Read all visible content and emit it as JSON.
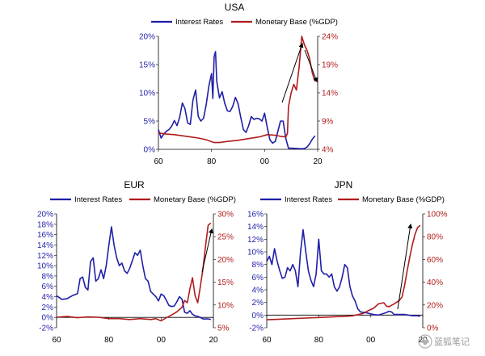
{
  "watermark": "蓝狐笔记",
  "chart_data": [
    {
      "type": "line",
      "title": "USA",
      "legend": [
        "Interest Rates",
        "Monetary Base (%GDP)"
      ],
      "legend_placement": "top",
      "x_ticks": [
        "60",
        "80",
        "00",
        "20"
      ],
      "x_range": [
        1960,
        2020
      ],
      "y_left": {
        "range": [
          0,
          20
        ],
        "ticks": [
          "0%",
          "5%",
          "10%",
          "15%",
          "20%"
        ],
        "color": "#1f1fa8"
      },
      "y_right": {
        "range": [
          4,
          24
        ],
        "ticks": [
          "4%",
          "9%",
          "14%",
          "19%",
          "24%"
        ],
        "color": "#b01c1c"
      },
      "series": [
        {
          "name": "Interest Rates",
          "axis": "left",
          "color": "#1f1fa8",
          "x": [
            1960,
            1961,
            1962,
            1963,
            1964,
            1965,
            1966,
            1967,
            1968,
            1969,
            1970,
            1971,
            1972,
            1973,
            1974,
            1975,
            1976,
            1977,
            1978,
            1979,
            1980,
            1980.5,
            1981,
            1981.5,
            1982,
            1983,
            1984,
            1985,
            1986,
            1987,
            1988,
            1989,
            1990,
            1991,
            1992,
            1993,
            1994,
            1995,
            1996,
            1997,
            1998,
            1999,
            2000,
            2001,
            2002,
            2003,
            2004,
            2005,
            2006,
            2007,
            2008,
            2009,
            2010,
            2012,
            2014,
            2015,
            2016,
            2017,
            2018,
            2019
          ],
          "y": [
            3.5,
            2.0,
            2.7,
            3.2,
            3.5,
            4.1,
            5.1,
            4.2,
            5.7,
            8.2,
            7.2,
            4.7,
            4.4,
            8.7,
            10.5,
            5.8,
            5.0,
            5.5,
            7.9,
            11.2,
            13.4,
            9.0,
            16.4,
            17.3,
            12.0,
            9.1,
            10.2,
            8.1,
            6.8,
            6.7,
            7.6,
            9.2,
            8.1,
            5.7,
            3.5,
            3.0,
            4.2,
            5.8,
            5.3,
            5.5,
            5.4,
            5.0,
            6.4,
            3.9,
            1.7,
            1.1,
            1.4,
            3.2,
            5.0,
            5.0,
            1.9,
            0.2,
            0.2,
            0.15,
            0.1,
            0.15,
            0.4,
            1.0,
            1.8,
            2.4
          ]
        },
        {
          "name": "Monetary Base (%GDP)",
          "axis": "right",
          "color": "#b01c1c",
          "x": [
            1960,
            1963,
            1966,
            1969,
            1972,
            1975,
            1978,
            1981,
            1983,
            1986,
            1990,
            1994,
            1998,
            2001,
            2004,
            2006,
            2008,
            2008.6,
            2009,
            2010,
            2011,
            2012,
            2013,
            2014,
            2015,
            2016,
            2017,
            2018,
            2019
          ],
          "y": [
            6.9,
            6.7,
            6.6,
            6.4,
            6.2,
            6.0,
            5.7,
            5.2,
            5.2,
            5.4,
            5.6,
            5.9,
            6.2,
            6.6,
            6.5,
            6.3,
            6.2,
            6.8,
            11.6,
            14.0,
            15.5,
            14.5,
            18.5,
            24.0,
            22.5,
            21.5,
            20.0,
            17.5,
            16.0
          ]
        }
      ]
    },
    {
      "type": "line",
      "title": "EUR",
      "legend": [
        "Interest Rates",
        "Monetary Base (%GDP)"
      ],
      "legend_placement": "top",
      "x_ticks": [
        "60",
        "80",
        "00",
        "20"
      ],
      "x_range": [
        1960,
        2020
      ],
      "y_left": {
        "range": [
          -2,
          20
        ],
        "ticks": [
          "-2%",
          "0%",
          "2%",
          "4%",
          "6%",
          "8%",
          "10%",
          "12%",
          "14%",
          "16%",
          "18%",
          "20%"
        ],
        "color": "#1f1fa8"
      },
      "y_right": {
        "range": [
          5,
          30
        ],
        "ticks": [
          "5%",
          "10%",
          "15%",
          "20%",
          "25%",
          "30%"
        ],
        "color": "#b01c1c"
      },
      "series": [
        {
          "name": "Interest Rates",
          "axis": "left",
          "color": "#1f1fa8",
          "x": [
            1960,
            1962,
            1964,
            1966,
            1968,
            1969,
            1970,
            1971,
            1972,
            1973,
            1974,
            1975,
            1976,
            1977,
            1978,
            1979,
            1980,
            1981,
            1982,
            1983,
            1984,
            1985,
            1986,
            1987,
            1988,
            1989,
            1990,
            1991,
            1992,
            1993,
            1994,
            1995,
            1996,
            1997,
            1998,
            1999,
            2000,
            2001,
            2002,
            2003,
            2004,
            2005,
            2006,
            2007,
            2008,
            2009,
            2010,
            2011,
            2012,
            2013,
            2014,
            2015,
            2016,
            2017,
            2018,
            2019
          ],
          "y": [
            4.2,
            3.5,
            3.6,
            4.2,
            4.6,
            7.5,
            7.8,
            5.8,
            5.3,
            10.8,
            11.5,
            7.0,
            7.5,
            9.2,
            7.5,
            10.0,
            14.0,
            17.5,
            14.0,
            11.5,
            10.0,
            10.5,
            9.0,
            8.5,
            9.5,
            11.0,
            12.5,
            12.0,
            13.0,
            10.0,
            7.5,
            7.0,
            5.0,
            4.5,
            4.0,
            3.2,
            4.5,
            4.2,
            3.3,
            2.3,
            2.1,
            2.2,
            3.0,
            4.0,
            3.5,
            1.0,
            0.8,
            1.3,
            0.6,
            0.3,
            0.2,
            0.0,
            -0.3,
            -0.3,
            -0.3,
            -0.4
          ]
        },
        {
          "name": "Monetary Base (%GDP)",
          "axis": "right",
          "color": "#b01c1c",
          "x": [
            1960,
            1964,
            1968,
            1972,
            1976,
            1980,
            1984,
            1988,
            1992,
            1996,
            1998,
            2000,
            2002,
            2004,
            2006,
            2008,
            2009,
            2010,
            2011,
            2012,
            2013,
            2014,
            2015,
            2016,
            2017,
            2018,
            2019
          ],
          "y": [
            7.3,
            7.5,
            7.2,
            7.4,
            7.3,
            7.0,
            7.0,
            6.8,
            7.0,
            6.8,
            7.0,
            6.5,
            7.2,
            7.8,
            8.5,
            9.5,
            11.0,
            10.5,
            13.5,
            16.0,
            12.0,
            10.5,
            14.0,
            18.0,
            23.0,
            27.5,
            28.0
          ]
        }
      ]
    },
    {
      "type": "line",
      "title": "JPN",
      "legend": [
        "Interest Rates",
        "Monetary Base (%GDP)"
      ],
      "legend_placement": "top",
      "x_ticks": [
        "60",
        "80",
        "00",
        "20"
      ],
      "x_range": [
        1960,
        2020
      ],
      "y_left": {
        "range": [
          -2,
          16
        ],
        "ticks": [
          "-2%",
          "0%",
          "2%",
          "4%",
          "6%",
          "8%",
          "10%",
          "12%",
          "14%",
          "16%"
        ],
        "color": "#1f1fa8"
      },
      "y_right": {
        "range": [
          0,
          100
        ],
        "ticks": [
          "0%",
          "20%",
          "40%",
          "60%",
          "80%",
          "100%"
        ],
        "color": "#b01c1c"
      },
      "series": [
        {
          "name": "Interest Rates",
          "axis": "left",
          "color": "#1f1fa8",
          "x": [
            1960,
            1961,
            1962,
            1963,
            1964,
            1965,
            1966,
            1967,
            1968,
            1969,
            1970,
            1971,
            1972,
            1973,
            1974,
            1975,
            1976,
            1977,
            1978,
            1979,
            1980,
            1981,
            1982,
            1983,
            1984,
            1985,
            1986,
            1987,
            1988,
            1989,
            1990,
            1991,
            1992,
            1993,
            1994,
            1995,
            1996,
            1998,
            2000,
            2001,
            2003,
            2006,
            2007,
            2008,
            2009,
            2011,
            2013,
            2016,
            2018,
            2019
          ],
          "y": [
            8.5,
            9.3,
            8.0,
            10.5,
            8.5,
            7.0,
            5.8,
            6.0,
            7.5,
            7.0,
            8.0,
            7.0,
            4.5,
            10.0,
            13.5,
            10.0,
            7.0,
            5.5,
            4.5,
            6.5,
            12.0,
            7.0,
            6.5,
            6.5,
            6.0,
            6.5,
            4.5,
            3.8,
            4.5,
            6.0,
            8.0,
            7.5,
            4.5,
            3.0,
            2.2,
            1.0,
            0.5,
            0.4,
            0.2,
            0.1,
            0.0,
            0.4,
            0.6,
            0.5,
            0.1,
            0.1,
            0.1,
            -0.1,
            -0.1,
            -0.2
          ]
        },
        {
          "name": "Monetary Base (%GDP)",
          "axis": "right",
          "color": "#b01c1c",
          "x": [
            1960,
            1965,
            1970,
            1975,
            1980,
            1985,
            1990,
            1993,
            1995,
            1997,
            1999,
            2001,
            2003,
            2005,
            2006,
            2007,
            2009,
            2011,
            2012,
            2013,
            2014,
            2015,
            2016,
            2017,
            2018,
            2019
          ],
          "y": [
            7.0,
            7.5,
            8.0,
            8.5,
            9.0,
            9.5,
            10.0,
            10.5,
            11.5,
            12.5,
            15.0,
            17.0,
            21.0,
            22.0,
            19.0,
            18.5,
            21.0,
            24.0,
            27.0,
            37.0,
            50.0,
            62.0,
            73.0,
            82.0,
            88.0,
            90.0
          ]
        }
      ]
    }
  ]
}
